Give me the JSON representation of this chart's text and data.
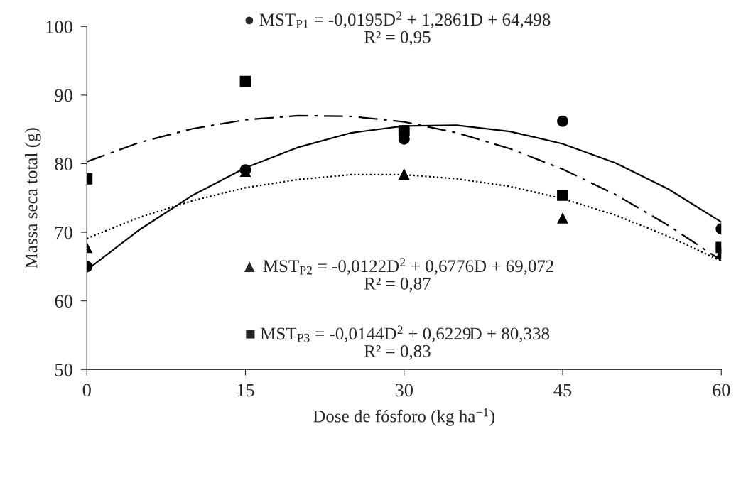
{
  "chart_data": {
    "type": "scatter",
    "xlabel": "Dose de fósforo (kg ha$^{−1}$)",
    "ylabel": "Massa seca total (g)",
    "xlim": [
      0,
      60
    ],
    "xticks": [
      0,
      15,
      30,
      45,
      60
    ],
    "ylim": [
      50,
      100
    ],
    "yticks": [
      50,
      60,
      70,
      80,
      90,
      100
    ],
    "grid": false,
    "series": [
      {
        "marker": "circle",
        "color": "#000000",
        "x": [
          0,
          15,
          30,
          45,
          60
        ],
        "values": [
          65.0,
          79.1,
          83.6,
          86.2,
          70.5
        ]
      },
      {
        "marker": "triangle",
        "color": "#000000",
        "x": [
          0,
          15,
          30,
          45,
          60
        ],
        "values": [
          67.8,
          78.9,
          78.5,
          72.1,
          67.0
        ]
      },
      {
        "marker": "square",
        "color": "#000000",
        "x": [
          0,
          15,
          30,
          45,
          60
        ],
        "values": [
          77.8,
          92.0,
          84.8,
          75.4,
          67.8
        ]
      },
      {
        "type": "line",
        "line_style": "solid",
        "color": "#000000",
        "x": [
          0,
          5,
          10,
          15,
          20,
          25,
          30,
          35,
          40,
          45,
          50,
          55,
          60
        ],
        "values": [
          64.5,
          70.4,
          75.4,
          79.4,
          82.4,
          84.5,
          85.5,
          85.6,
          84.7,
          82.9,
          80.1,
          76.3,
          71.5
        ]
      },
      {
        "type": "line",
        "line_style": "dotted",
        "color": "#000000",
        "x": [
          0,
          5,
          10,
          15,
          20,
          25,
          30,
          35,
          40,
          45,
          50,
          55,
          60
        ],
        "values": [
          69.1,
          72.2,
          74.6,
          76.5,
          77.7,
          78.4,
          78.4,
          77.8,
          76.7,
          74.9,
          72.5,
          69.4,
          65.8
        ]
      },
      {
        "type": "line",
        "line_style": "dashdot",
        "color": "#000000",
        "x": [
          0,
          5,
          10,
          15,
          20,
          25,
          30,
          35,
          40,
          45,
          50,
          55,
          60
        ],
        "values": [
          80.3,
          83.1,
          85.1,
          86.4,
          87.0,
          86.9,
          86.1,
          84.5,
          82.2,
          79.2,
          75.5,
          71.0,
          65.9
        ]
      }
    ],
    "annotations": [
      "● MST$_{P1}$ = -0,0195D$^{2}$ + 1,2861D + 64,498\nR² = 0,95",
      "▲ MST$_{P2}$ = -0,0122D$^{2}$ + 0,6776D + 69,072\nR² = 0,87",
      "■ MST$_{P3}$ = -0,0144D$^{2}$ + 0,6229D + 80,338\nR² = 0,83"
    ]
  }
}
